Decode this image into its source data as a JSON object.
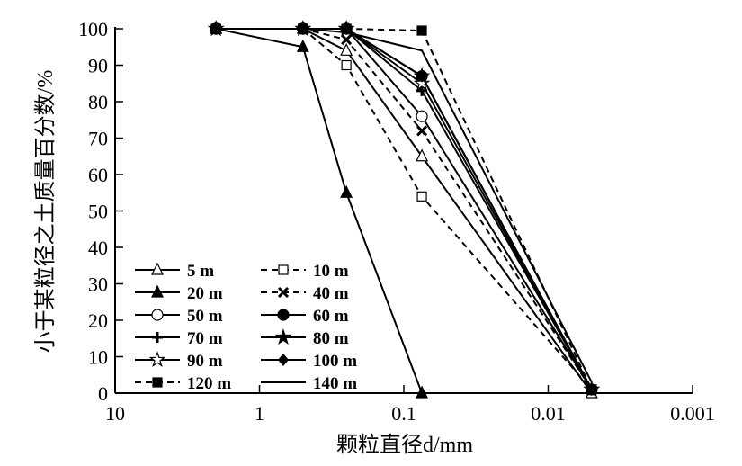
{
  "chart_data": {
    "type": "line",
    "title": "",
    "xlabel": "颗粒直径d/mm",
    "ylabel": "小于某粒径之土质量百分数/%",
    "xscale": "log",
    "xlim": [
      10,
      0.001
    ],
    "ylim": [
      0,
      100
    ],
    "xticks": [
      "10",
      "1",
      "0.1",
      "0.01",
      "0.001"
    ],
    "yticks": [
      "0",
      "10",
      "20",
      "30",
      "40",
      "50",
      "60",
      "70",
      "80",
      "90",
      "100"
    ],
    "grid": false,
    "legend_position": "bottom-left",
    "x": [
      2,
      0.5,
      0.25,
      0.075,
      0.005
    ],
    "series": [
      {
        "name": "5 m",
        "marker": "triangle-open",
        "dash": false,
        "values": [
          100,
          100,
          94,
          65,
          0
        ]
      },
      {
        "name": "10 m",
        "marker": "square-open",
        "dash": true,
        "values": [
          100,
          100,
          90,
          54,
          1
        ]
      },
      {
        "name": "20 m",
        "marker": "triangle-filled",
        "dash": false,
        "values": [
          100,
          95,
          55,
          0,
          null
        ]
      },
      {
        "name": "40 m",
        "marker": "x",
        "dash": true,
        "values": [
          100,
          100,
          97,
          72,
          1
        ]
      },
      {
        "name": "50 m",
        "marker": "circle-open",
        "dash": false,
        "values": [
          100,
          100,
          100,
          76,
          1
        ]
      },
      {
        "name": "60 m",
        "marker": "circle-filled",
        "dash": false,
        "values": [
          100,
          100,
          100,
          87,
          1
        ]
      },
      {
        "name": "70 m",
        "marker": "plus",
        "dash": false,
        "values": [
          100,
          100,
          100,
          83,
          1
        ]
      },
      {
        "name": "80 m",
        "marker": "star-filled",
        "dash": false,
        "values": [
          100,
          100,
          100,
          87,
          1
        ]
      },
      {
        "name": "90 m",
        "marker": "star-open",
        "dash": false,
        "values": [
          100,
          100,
          100,
          85,
          1
        ]
      },
      {
        "name": "100 m",
        "marker": "diamond-filled",
        "dash": false,
        "values": [
          100,
          100,
          100,
          87,
          1
        ]
      },
      {
        "name": "120 m",
        "marker": "square-filled",
        "dash": true,
        "values": [
          100,
          100,
          100,
          99.5,
          1
        ]
      },
      {
        "name": "140 m",
        "marker": "none",
        "dash": false,
        "values": [
          100,
          100,
          99,
          94,
          3
        ]
      }
    ]
  }
}
